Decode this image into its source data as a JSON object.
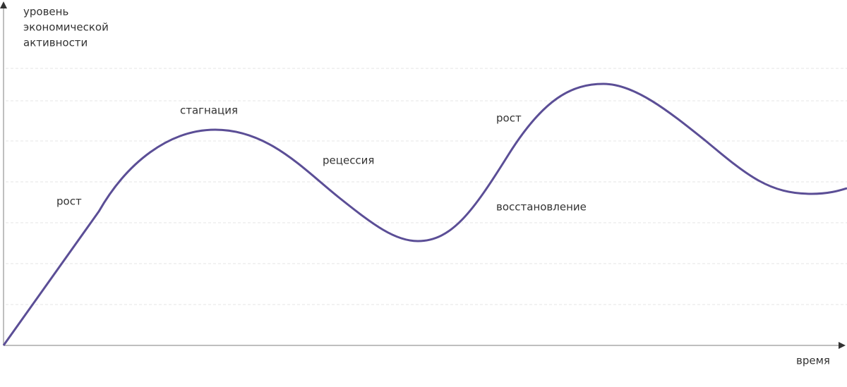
{
  "y_axis_label": [
    "уровень",
    "экономической",
    "активности"
  ],
  "x_axis_label": "время",
  "phases": [
    {
      "text": "рост"
    },
    {
      "text": "стагнация"
    },
    {
      "text": "рецессия"
    },
    {
      "text": "рост"
    },
    {
      "text": "восстановление"
    }
  ]
}
